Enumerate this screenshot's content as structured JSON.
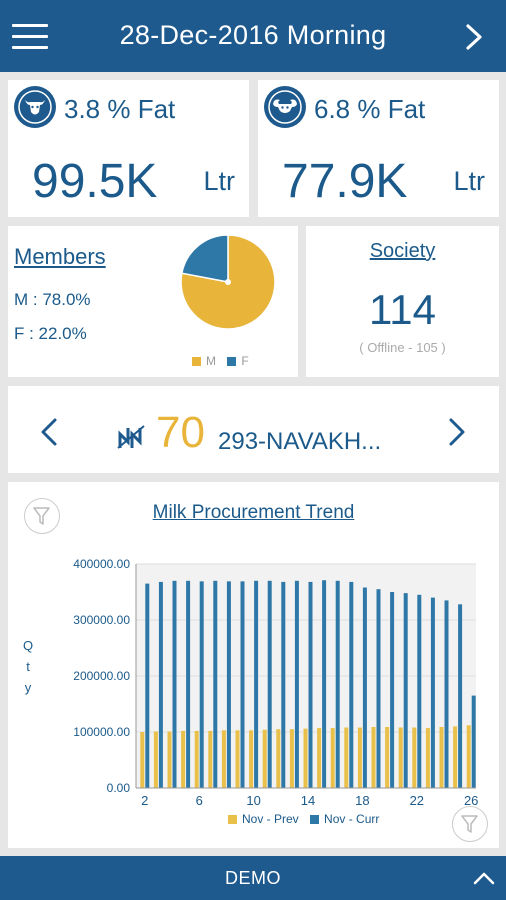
{
  "header": {
    "title": "28-Dec-2016 Morning",
    "menu_icon": "hamburger-menu-icon",
    "next_icon": "chevron-right-icon"
  },
  "fat_cards": [
    {
      "icon": "cow-icon",
      "label": "3.8 % Fat",
      "quantity": "99.5K",
      "unit": "Ltr"
    },
    {
      "icon": "buffalo-icon",
      "label": "6.8 % Fat",
      "quantity": "77.9K",
      "unit": "Ltr"
    }
  ],
  "members": {
    "title": "Members",
    "m_text": "M : 78.0%",
    "f_text": "F : 22.0%",
    "pie": {
      "slices": [
        {
          "name": "M",
          "value": 78.0,
          "color": "#e8b43a"
        },
        {
          "name": "F",
          "value": 22.0,
          "color": "#2e78a8"
        }
      ]
    },
    "legend_m": "M",
    "legend_f": "F"
  },
  "society": {
    "title": "Society",
    "count": "114",
    "offline": "( Offline - 105 )"
  },
  "route": {
    "count": "70",
    "name": "293-NAVAKH...",
    "icon": "route-icon",
    "prev_icon": "chevron-left-icon",
    "next_icon": "chevron-right-icon"
  },
  "chart": {
    "title": "Milk Procurement Trend",
    "ylabel_chars": [
      "Q",
      "t",
      "y"
    ],
    "filter_icon": "filter-icon",
    "legend_prev": "Nov - Prev",
    "legend_curr": "Nov - Curr",
    "colors": {
      "prev": "#e8c04a",
      "curr": "#2e78a8"
    }
  },
  "chart_data": {
    "type": "bar",
    "title": "Milk Procurement Trend",
    "ylabel": "Qty",
    "ylim": [
      0,
      400000
    ],
    "yticks": [
      "0.00",
      "100000.00",
      "200000.00",
      "300000.00",
      "400000.00"
    ],
    "xticks": [
      "2",
      "6",
      "10",
      "14",
      "18",
      "22",
      "26"
    ],
    "categories": [
      2,
      3,
      4,
      5,
      6,
      7,
      8,
      9,
      10,
      11,
      12,
      13,
      14,
      15,
      16,
      17,
      18,
      19,
      20,
      21,
      22,
      23,
      24,
      25,
      26
    ],
    "series": [
      {
        "name": "Nov - Prev",
        "values": [
          100000,
          101000,
          101000,
          102000,
          102000,
          102000,
          103000,
          103000,
          103000,
          104000,
          105000,
          105000,
          106000,
          107000,
          107000,
          108000,
          108000,
          109000,
          109000,
          108000,
          108000,
          107000,
          109000,
          110000,
          112000
        ]
      },
      {
        "name": "Nov - Curr",
        "values": [
          365000,
          368000,
          370000,
          370000,
          369000,
          370000,
          369000,
          369000,
          370000,
          370000,
          368000,
          370000,
          368000,
          371000,
          370000,
          368000,
          358000,
          355000,
          350000,
          348000,
          345000,
          340000,
          335000,
          328000,
          165000
        ]
      }
    ]
  },
  "footer": {
    "label": "DEMO",
    "up_icon": "chevron-up-icon"
  }
}
